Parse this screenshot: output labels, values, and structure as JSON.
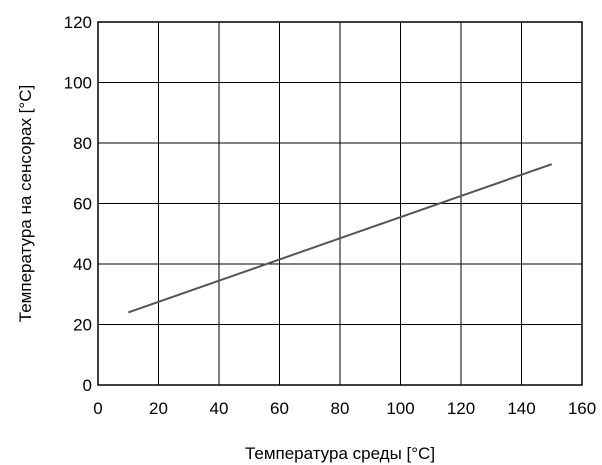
{
  "chart_data": {
    "type": "line",
    "xlabel": "Температура среды [°C]",
    "ylabel": "Температура на сенсорах [°C]",
    "xlim": [
      0,
      160
    ],
    "ylim": [
      0,
      120
    ],
    "xticks": [
      0,
      20,
      40,
      60,
      80,
      100,
      120,
      140,
      160
    ],
    "yticks": [
      0,
      20,
      40,
      60,
      80,
      100,
      120
    ],
    "grid": true,
    "series": [
      {
        "x": [
          10,
          150
        ],
        "y": [
          24,
          73
        ],
        "color": "#555555"
      }
    ]
  }
}
